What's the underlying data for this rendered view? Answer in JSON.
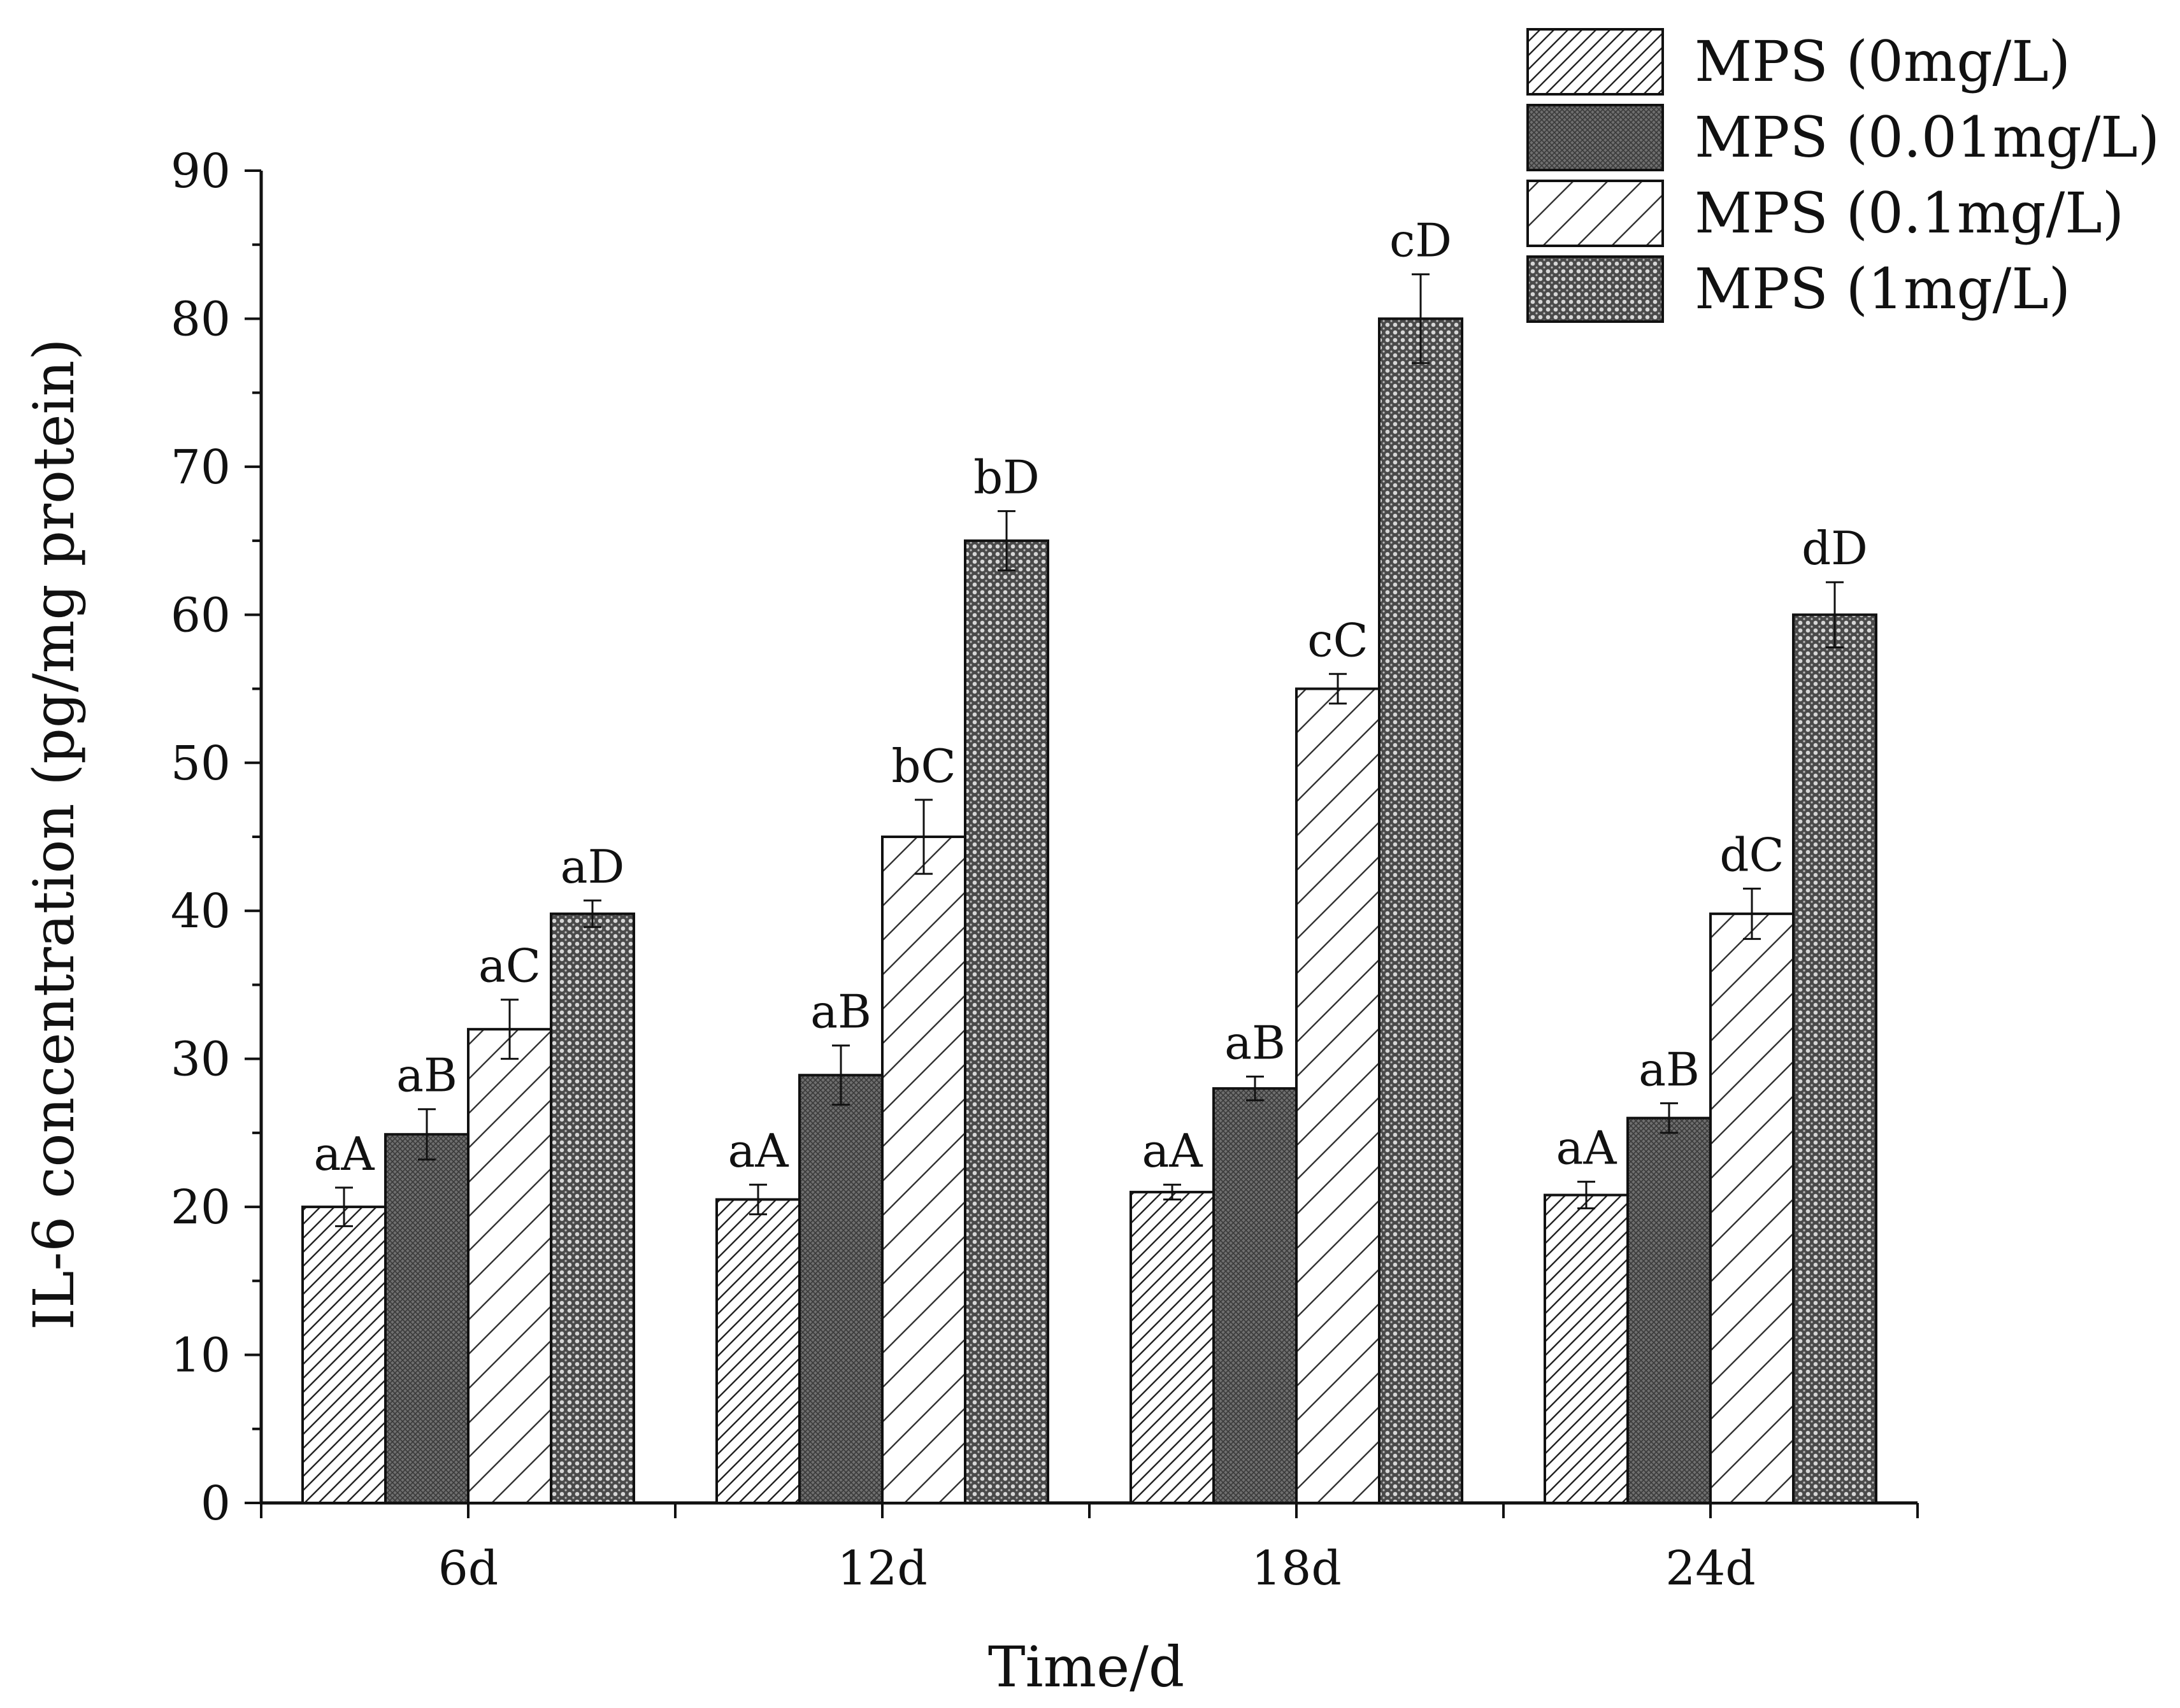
{
  "chart_data": {
    "type": "bar",
    "title": "",
    "xlabel": "Time/d",
    "ylabel": "IL-6 concentration (pg/mg protein)",
    "categories": [
      "6d",
      "12d",
      "18d",
      "24d"
    ],
    "ylim": [
      0,
      90
    ],
    "yticks": [
      "0",
      "10",
      "20",
      "30",
      "40",
      "50",
      "60",
      "70",
      "80",
      "90"
    ],
    "grid": false,
    "legend_position": "top-right",
    "series": [
      {
        "name": "MPS (0mg/L)",
        "pattern": "hatch-dense",
        "values": [
          20.0,
          20.5,
          21.0,
          20.8
        ],
        "errors": [
          1.3,
          1.0,
          0.5,
          0.9
        ],
        "labels": [
          "aA",
          "aA",
          "aA",
          "aA"
        ]
      },
      {
        "name": "MPS (0.01mg/L)",
        "pattern": "crosshatch-dark",
        "values": [
          24.9,
          28.9,
          28.0,
          26.0
        ],
        "errors": [
          1.7,
          2.0,
          0.8,
          1.0
        ],
        "labels": [
          "aB",
          "aB",
          "aB",
          "aB"
        ]
      },
      {
        "name": "MPS (0.1mg/L)",
        "pattern": "hatch-wide",
        "values": [
          32.0,
          45.0,
          55.0,
          39.8
        ],
        "errors": [
          2.0,
          2.5,
          1.0,
          1.7
        ],
        "labels": [
          "aC",
          "bC",
          "cC",
          "dC"
        ]
      },
      {
        "name": "MPS (1mg/L)",
        "pattern": "dots",
        "values": [
          39.8,
          65.0,
          80.0,
          60.0
        ],
        "errors": [
          0.9,
          2.0,
          3.0,
          2.2
        ],
        "labels": [
          "aD",
          "bD",
          "cD",
          "dD"
        ]
      }
    ],
    "colors": {
      "stroke": "#111111",
      "background": "#ffffff"
    }
  }
}
